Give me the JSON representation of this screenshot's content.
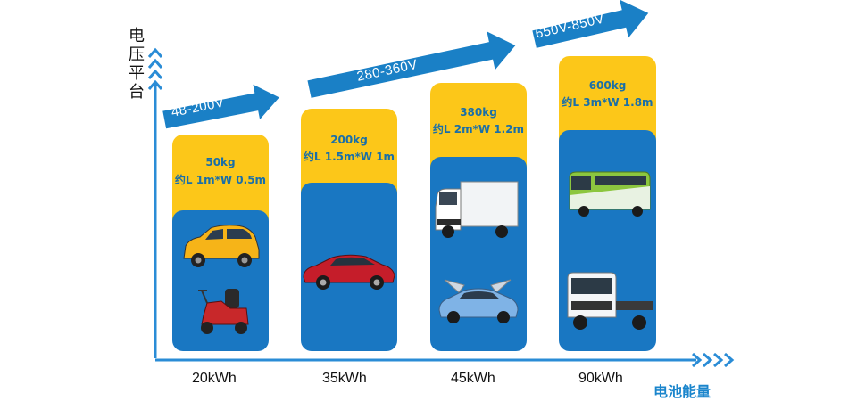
{
  "y_axis_label": "电压平台",
  "x_axis_label": "电池能量",
  "colors": {
    "blue": "#1977c2",
    "yellow": "#fcc719",
    "text": "#1a6fa8",
    "arrow": "#1a80c6",
    "axis": "#2a8cd6"
  },
  "voltage_arrows": [
    "48-200V",
    "280-360V",
    "650V-850V"
  ],
  "columns": [
    {
      "energy": "20kWh",
      "weight": "50kg",
      "size": "约L 1m*W 0.5m",
      "vehicles": [
        "mini-car-icon",
        "mobility-scooter-icon"
      ]
    },
    {
      "energy": "35kWh",
      "weight": "200kg",
      "size": "约L 1.5m*W 1m",
      "vehicles": [
        "sedan-icon"
      ]
    },
    {
      "energy": "45kWh",
      "weight": "380kg",
      "size": "约L 2m*W 1.2m",
      "vehicles": [
        "box-truck-icon",
        "suv-icon"
      ]
    },
    {
      "energy": "90kWh",
      "weight": "600kg",
      "size": "约L 3m*W 1.8m",
      "vehicles": [
        "bus-icon",
        "truck-cab-icon"
      ]
    }
  ]
}
